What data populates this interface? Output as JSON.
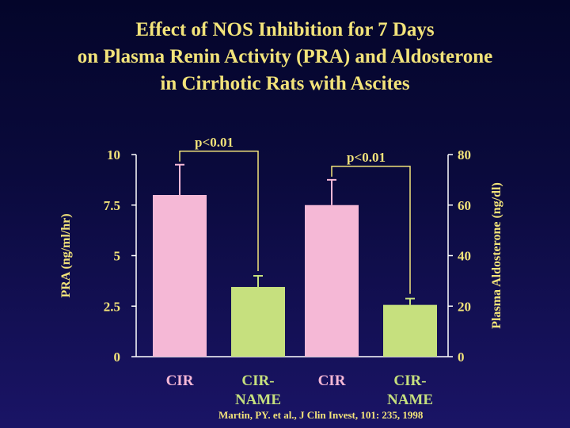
{
  "slide": {
    "title_lines": [
      "Effect of NOS Inhibition for 7 Days",
      "on Plasma Renin Activity (PRA) and Aldosterone",
      "in Cirrhotic Rats with Ascites"
    ],
    "citation": "Martin, PY. et al., J Clin Invest, 101: 235, 1998"
  },
  "chart_data": [
    {
      "type": "bar",
      "ylabel": "PRA (ng/ml/hr)",
      "ylim": [
        0,
        10
      ],
      "yticks": [
        0,
        2.5,
        5,
        7.5,
        10
      ],
      "ytick_labels": [
        "0",
        "2.5",
        "5",
        "7.5",
        "10"
      ],
      "categories": [
        "CIR",
        "CIR-\nNAME"
      ],
      "category_lines": [
        [
          "CIR"
        ],
        [
          "CIR-",
          "NAME"
        ]
      ],
      "values": [
        8.0,
        3.45
      ],
      "errors": [
        1.5,
        0.55
      ],
      "bar_colors": [
        "#f5b8d6",
        "#c6e07e"
      ],
      "significance": "p<0.01",
      "axis_side": "left"
    },
    {
      "type": "bar",
      "ylabel": "Plasma Aldosterone (ng/dl)",
      "ylim": [
        0,
        80
      ],
      "yticks": [
        0,
        20,
        40,
        60,
        80
      ],
      "ytick_labels": [
        "0",
        "20",
        "40",
        "60",
        "80"
      ],
      "categories": [
        "CIR",
        "CIR-\nNAME"
      ],
      "category_lines": [
        [
          "CIR"
        ],
        [
          "CIR-",
          "NAME"
        ]
      ],
      "values": [
        60,
        20.5
      ],
      "errors": [
        10,
        2.5
      ],
      "bar_colors": [
        "#f5b8d6",
        "#c6e07e"
      ],
      "significance": "p<0.01",
      "axis_side": "right"
    }
  ],
  "colors": {
    "text": "#f2e37a",
    "axis": "#ffffff",
    "bracket": "#f2e37a"
  }
}
